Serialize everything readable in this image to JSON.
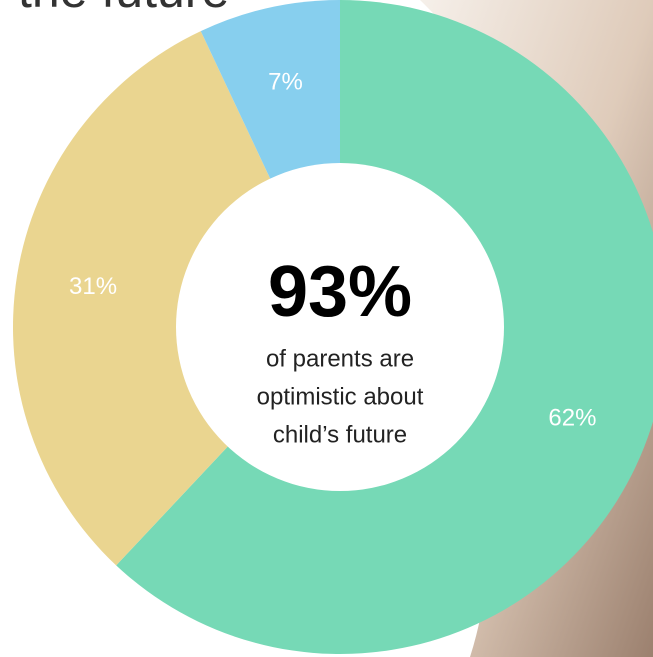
{
  "chart_data": {
    "type": "donut",
    "title": "the future",
    "categories": [
      null,
      null,
      null
    ],
    "values": [
      62,
      31,
      7
    ],
    "value_labels": [
      "62%",
      "31%",
      "7%"
    ],
    "colors": [
      "#76d9b6",
      "#ead590",
      "#87cfee"
    ],
    "center_text": {
      "headline": "93%",
      "lines": [
        "of parents are",
        "optimistic about",
        "child’s future"
      ]
    }
  }
}
